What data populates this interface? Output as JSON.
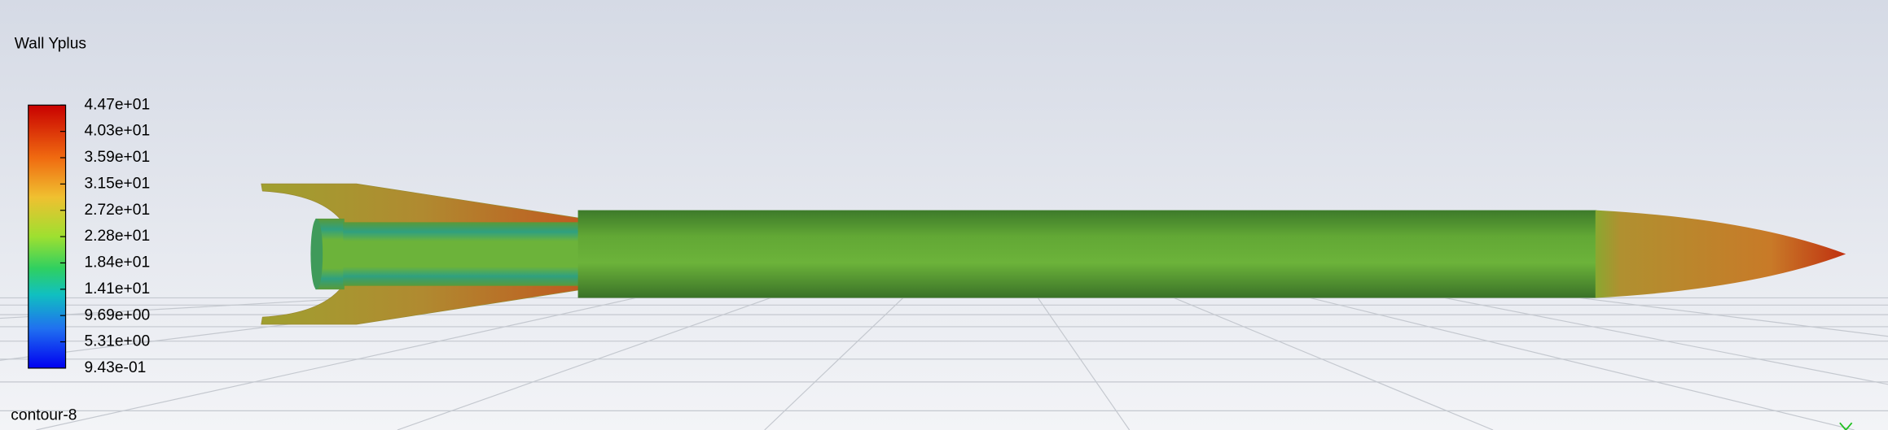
{
  "legend": {
    "title": "Wall Yplus",
    "labels": [
      "4.47e+01",
      "4.03e+01",
      "3.59e+01",
      "3.15e+01",
      "2.72e+01",
      "2.28e+01",
      "1.84e+01",
      "1.41e+01",
      "9.69e+00",
      "5.31e+00",
      "9.43e-01"
    ]
  },
  "footer": {
    "label": "contour-8"
  }
}
